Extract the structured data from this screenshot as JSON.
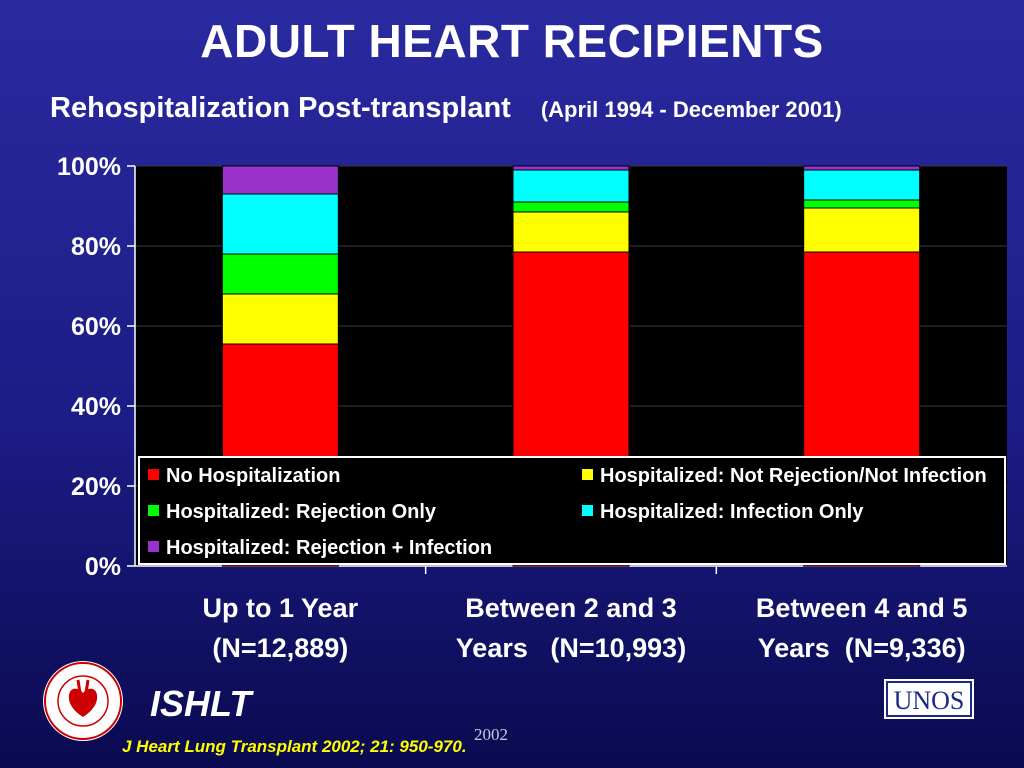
{
  "slide": {
    "title": "ADULT HEART RECIPIENTS",
    "subtitle": "Rehospitalization Post-transplant",
    "date_range": "(April 1994 - December 2001)"
  },
  "footer": {
    "org": "ISHLT",
    "year": "2002",
    "citation": "J Heart Lung Transplant 2002; 21: 950-970.",
    "seal_text": "INTERNATIONAL SOCIETY FOR HEART & LUNG TRANSPLANTATION",
    "unos_text": "UNOS"
  },
  "chart_data": {
    "type": "bar",
    "stacked": true,
    "percent": true,
    "categories": [
      [
        "Up to 1 Year",
        "(N=12,889)"
      ],
      [
        "Between 2 and 3",
        "Years   (N=10,993)"
      ],
      [
        "Between 4 and 5",
        "Years  (N=9,336)"
      ]
    ],
    "series": [
      {
        "name": "No Hospitalization",
        "color": "#ff0000",
        "values": [
          55.5,
          78.5,
          78.5
        ]
      },
      {
        "name": "Hospitalized: Not Rejection/Not Infection",
        "color": "#ffff00",
        "values": [
          12.5,
          10,
          11
        ]
      },
      {
        "name": "Hospitalized: Rejection Only",
        "color": "#00ff00",
        "values": [
          10,
          2.5,
          2
        ]
      },
      {
        "name": "Hospitalized: Infection Only",
        "color": "#00ffff",
        "values": [
          15,
          8,
          7.5
        ]
      },
      {
        "name": "Hospitalized: Rejection + Infection",
        "color": "#9933cc",
        "values": [
          7,
          1,
          1
        ]
      }
    ],
    "ylim": [
      0,
      100
    ],
    "yticks": [
      0,
      20,
      40,
      60,
      80,
      100
    ],
    "ytick_labels": [
      "0%",
      "20%",
      "40%",
      "60%",
      "80%",
      "100%"
    ],
    "grid": true,
    "legend_position": "inside-bottom"
  }
}
